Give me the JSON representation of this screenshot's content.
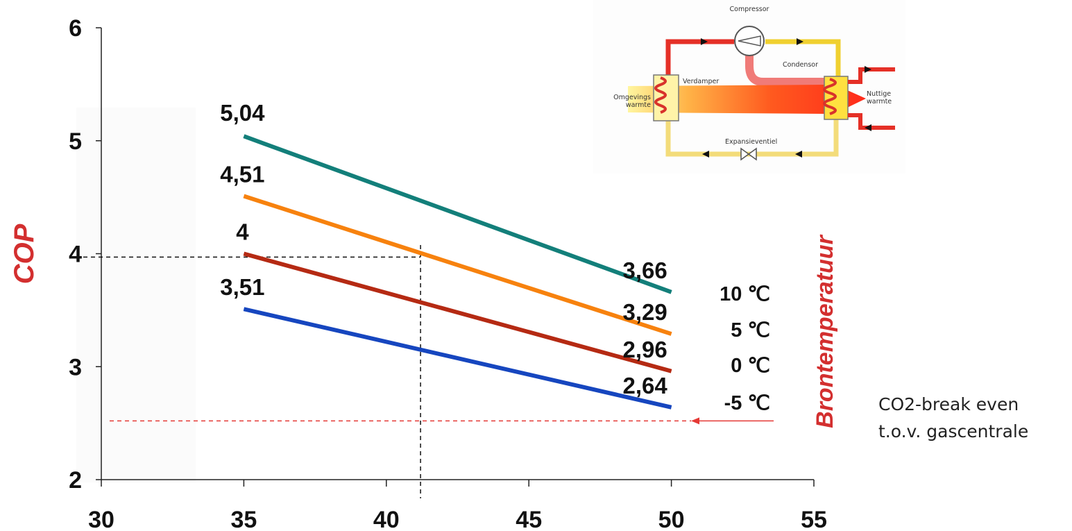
{
  "chart_data": {
    "type": "line",
    "ylabel": "COP",
    "legend_title": "Brontemperatuur",
    "x": [
      35,
      50
    ],
    "xlim": [
      30,
      55
    ],
    "ylim": [
      2,
      6
    ],
    "xticks": [
      "30",
      "35",
      "40",
      "45",
      "50",
      "55"
    ],
    "yticks": [
      "2",
      "3",
      "4",
      "5",
      "6"
    ],
    "grid": false,
    "series": [
      {
        "name": "10 ℃",
        "color": "#137f7a",
        "values": [
          5.04,
          3.66
        ],
        "labels": [
          "5,04",
          "3,66"
        ]
      },
      {
        "name": "5 ℃",
        "color": "#f7820e",
        "values": [
          4.51,
          3.29
        ],
        "labels": [
          "4,51",
          "3,29"
        ]
      },
      {
        "name": "0 ℃",
        "color": "#b52a13",
        "values": [
          4.0,
          2.96
        ],
        "labels": [
          "4",
          "2,96"
        ]
      },
      {
        "name": "-5 ℃",
        "color": "#1646bf",
        "values": [
          3.51,
          2.64
        ],
        "labels": [
          "3,51",
          "2,64"
        ]
      }
    ],
    "reference_lines": {
      "crosshair_x": 41.2,
      "crosshair_y": 3.97,
      "break_even_y": 2.52,
      "break_even_color": "#e53935"
    },
    "annotation": [
      "CO2-break even",
      "t.o.v. gascentrale"
    ]
  },
  "diagram": {
    "compressor": "Compressor",
    "condensor": "Condensor",
    "verdamper": "Verdamper",
    "expansieventiel": "Expansieventiel",
    "omgevings_line1": "Omgevings",
    "omgevings_line2": "warmte",
    "nuttige_line1": "Nuttige",
    "nuttige_line2": "warmte"
  }
}
